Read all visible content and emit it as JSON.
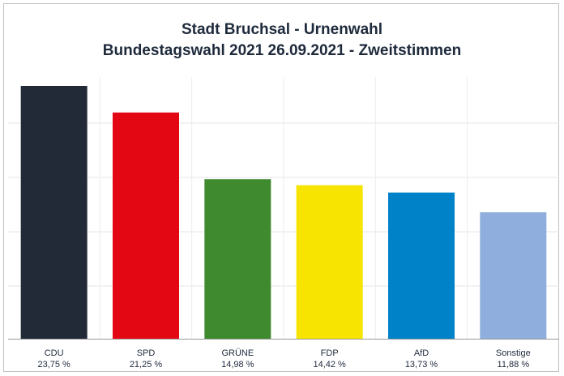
{
  "chart_data": {
    "type": "bar",
    "title": [
      "Stadt Bruchsal - Urnenwahl",
      "Bundestagswahl 2021 26.09.2021  - Zweitstimmen"
    ],
    "categories": [
      "CDU",
      "SPD",
      "GRÜNE",
      "FDP",
      "AfD",
      "Sonstige"
    ],
    "value_labels": [
      "23,75 %",
      "21,25 %",
      "14,98 %",
      "14,42 %",
      "13,73 %",
      "11,88 %"
    ],
    "values": [
      23.75,
      21.25,
      14.98,
      14.42,
      13.73,
      11.88
    ],
    "colors": [
      "#232a37",
      "#e30613",
      "#3f8a2e",
      "#f7e400",
      "#0082c9",
      "#8faede"
    ],
    "ylim": [
      0,
      23.75
    ],
    "grid": true,
    "legend": "none",
    "xlabel": "",
    "ylabel": ""
  }
}
